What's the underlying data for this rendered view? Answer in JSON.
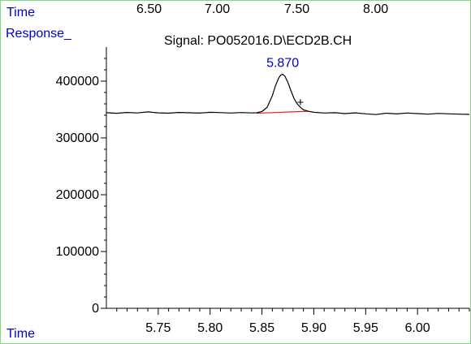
{
  "header": {
    "time_label": "Time",
    "response_label": "Response_",
    "signal_title": "Signal: PO052016.D\\ECD2B.CH"
  },
  "top_axis": {
    "label": "Time",
    "ticks": [
      "6.50",
      "7.00",
      "7.50",
      "8.00"
    ]
  },
  "colors": {
    "panel_border": "#7ddc7d",
    "axis_label": "#0000cc",
    "peak_label": "#0000cc",
    "trace": "#000000",
    "baseline": "#e02020"
  },
  "chart_data": {
    "type": "line",
    "title": "Signal: PO052016.D\\ECD2B.CH",
    "xlabel": "Time",
    "ylabel": "Response_",
    "xlim": [
      5.7,
      6.05
    ],
    "ylim": [
      0,
      460000
    ],
    "x_ticks": [
      5.75,
      5.8,
      5.85,
      5.9,
      5.95,
      6.0
    ],
    "x_tick_labels": [
      "5.75",
      "5.80",
      "5.85",
      "5.90",
      "5.95",
      "6.00"
    ],
    "y_ticks": [
      0,
      100000,
      200000,
      300000,
      400000
    ],
    "y_tick_labels": [
      "0",
      "100000",
      "200000",
      "300000",
      "400000"
    ],
    "series": [
      {
        "x": [
          5.7,
          5.71,
          5.72,
          5.73,
          5.74,
          5.75,
          5.76,
          5.77,
          5.78,
          5.79,
          5.8,
          5.81,
          5.82,
          5.83,
          5.84,
          5.845,
          5.85,
          5.855,
          5.86,
          5.863,
          5.866,
          5.868,
          5.87,
          5.872,
          5.875,
          5.878,
          5.881,
          5.884,
          5.887,
          5.89,
          5.895,
          5.9,
          5.91,
          5.92,
          5.93,
          5.94,
          5.95,
          5.96,
          5.97,
          5.98,
          5.99,
          6.0,
          6.01,
          6.02,
          6.03,
          6.04,
          6.05
        ],
        "y": [
          344500,
          343500,
          344800,
          344000,
          345800,
          344200,
          343600,
          344900,
          344300,
          343700,
          345100,
          344600,
          343900,
          344700,
          344000,
          344300,
          346500,
          354000,
          374000,
          392000,
          405000,
          410500,
          412000,
          409000,
          398000,
          383000,
          369000,
          360000,
          354000,
          349500,
          346800,
          345200,
          343900,
          344400,
          342800,
          344100,
          342500,
          341200,
          343600,
          342300,
          343900,
          342800,
          341900,
          343100,
          342400,
          341800,
          341500
        ]
      }
    ],
    "baseline": {
      "x": [
        5.845,
        5.895
      ],
      "y": [
        343500,
        347000
      ]
    },
    "annotations": [
      {
        "text": "5.870",
        "x": 5.87,
        "y": 412000,
        "type": "peak_label"
      },
      {
        "text": "+",
        "x": 5.887,
        "y": 363000,
        "type": "marker"
      }
    ],
    "grid": false
  }
}
